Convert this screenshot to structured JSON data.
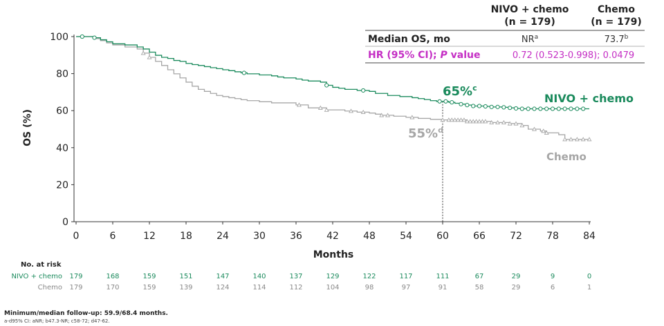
{
  "chart_data": {
    "type": "line",
    "title": "",
    "xlabel": "Months",
    "ylabel": "OS (%)",
    "xlim": [
      0,
      84
    ],
    "ylim": [
      0,
      100
    ],
    "xticks": [
      0,
      6,
      12,
      18,
      24,
      30,
      36,
      42,
      48,
      54,
      60,
      66,
      72,
      78,
      84
    ],
    "yticks": [
      0,
      20,
      40,
      60,
      80,
      100
    ],
    "grid": false,
    "colors": {
      "nivo": "#1a8a5c",
      "chemo": "#a6a6a6",
      "accent": "#c42ec4",
      "dark": "#222222"
    },
    "series": [
      {
        "name": "NIVO + chemo",
        "color": "#1a8a5c",
        "label": "NIVO + chemo",
        "x": [
          0,
          2,
          3,
          4,
          5,
          6,
          8,
          10,
          11,
          12,
          13,
          14,
          15,
          16,
          17,
          18,
          19,
          20,
          21,
          22,
          23,
          24,
          25,
          26,
          27,
          28,
          30,
          32,
          33,
          34,
          36,
          37,
          38,
          40,
          41,
          42,
          43,
          44,
          46,
          48,
          49,
          51,
          53,
          55,
          56,
          57,
          58,
          59,
          60,
          61,
          62,
          63,
          64,
          65,
          66,
          67,
          68,
          69,
          70,
          71,
          72,
          73,
          74,
          76,
          78,
          80,
          82,
          84
        ],
        "y": [
          100,
          100,
          99.4,
          98.3,
          97.2,
          96.1,
          95.5,
          94.4,
          93.3,
          91.6,
          89.9,
          88.8,
          88.2,
          87.1,
          86.6,
          85.5,
          84.9,
          84.4,
          83.8,
          83.2,
          82.7,
          82.1,
          81.6,
          81.0,
          80.4,
          79.9,
          79.3,
          78.8,
          78.2,
          77.7,
          77.1,
          76.5,
          76.0,
          75.4,
          73.7,
          72.6,
          72.1,
          71.5,
          70.9,
          70.4,
          69.3,
          68.2,
          67.6,
          67.0,
          66.5,
          66.0,
          65.4,
          65.0,
          65.0,
          64.5,
          64.0,
          63.5,
          63.0,
          62.5,
          62.5,
          62.3,
          62.0,
          62.0,
          61.8,
          61.5,
          61.2,
          61.0,
          61.0,
          61.0,
          61.0,
          61.0,
          61.0,
          61.0
        ],
        "censor_x": [
          1,
          3,
          27.5,
          41,
          47,
          59.5,
          60.5,
          61.5,
          63,
          64,
          65,
          66,
          67,
          68,
          69,
          70,
          71,
          72,
          73,
          74,
          75,
          76,
          77,
          78,
          79,
          80,
          81,
          82,
          83
        ]
      },
      {
        "name": "Chemo",
        "color": "#a6a6a6",
        "label": "Chemo",
        "x": [
          0,
          2,
          3,
          4,
          5,
          6,
          8,
          10,
          11,
          12,
          13,
          14,
          15,
          16,
          17,
          18,
          19,
          20,
          21,
          22,
          23,
          24,
          25,
          26,
          27,
          28,
          30,
          32,
          36,
          38,
          41,
          44,
          46,
          48,
          49,
          50,
          52,
          54,
          56,
          58,
          60,
          64,
          68,
          71,
          73,
          74,
          76,
          77,
          79,
          80,
          84
        ],
        "y": [
          100,
          100,
          98.9,
          97.8,
          96.6,
          95.5,
          94.4,
          93.3,
          91.1,
          88.8,
          86.6,
          84.4,
          82.1,
          79.9,
          77.7,
          75.4,
          73.2,
          71.5,
          70.4,
          69.3,
          68.2,
          67.6,
          67.0,
          66.5,
          65.9,
          65.4,
          64.8,
          64.2,
          63.1,
          61.5,
          60.4,
          59.8,
          59.2,
          58.7,
          58.1,
          57.5,
          57.0,
          56.4,
          55.8,
          55.3,
          55.0,
          54.2,
          53.6,
          53.0,
          52.0,
          50.0,
          49.0,
          48.0,
          47.0,
          44.5,
          44.5
        ],
        "censor_x": [
          11,
          12,
          36.5,
          40,
          41,
          45,
          47,
          50,
          51,
          55,
          60,
          61,
          61.5,
          62,
          62.5,
          63,
          63.5,
          64,
          64.5,
          65,
          65.5,
          66,
          66.5,
          67,
          68,
          69,
          70,
          71,
          72,
          73,
          75,
          76.5,
          77,
          80,
          81,
          82,
          83,
          84
        ]
      }
    ],
    "annotations": {
      "nivo_pct": "65%",
      "nivo_sup": "c",
      "chemo_pct": "55%",
      "chemo_sup": "d",
      "nivo_label": "NIVO + chemo",
      "chemo_label": "Chemo"
    },
    "table": {
      "col_nivo_line1": "NIVO + chemo",
      "col_nivo_line2": "(n = 179)",
      "col_chemo_line1": "Chemo",
      "col_chemo_line2": "(n = 179)",
      "row1_label": "Median OS, mo",
      "row1_nivo": "NR",
      "row1_nivo_sup": "a",
      "row1_chemo": "73.7",
      "row1_chemo_sup": "b",
      "row2_label_a": "HR (95% CI); ",
      "row2_label_p": "P",
      "row2_label_b": " value",
      "row2_value": "0.72 (0.523-0.998); 0.0479"
    },
    "risk": {
      "title": "No. at risk",
      "nivo_label": "NIVO + chemo",
      "chemo_label": "Chemo",
      "times": [
        0,
        6,
        12,
        18,
        24,
        30,
        36,
        42,
        48,
        54,
        60,
        66,
        72,
        78,
        84
      ],
      "nivo": [
        "179",
        "168",
        "159",
        "151",
        "147",
        "140",
        "137",
        "129",
        "122",
        "117",
        "111",
        "67",
        "29",
        "9",
        "0"
      ],
      "chemo": [
        "179",
        "170",
        "159",
        "139",
        "124",
        "114",
        "112",
        "104",
        "98",
        "97",
        "91",
        "58",
        "29",
        "6",
        "1"
      ]
    },
    "footnotes": {
      "line1": "Minimum/median follow-up: 59.9/68.4 months.",
      "line2": "a-d95% CI: aNR; b47.3-NR; c58-72; d47-62."
    }
  }
}
